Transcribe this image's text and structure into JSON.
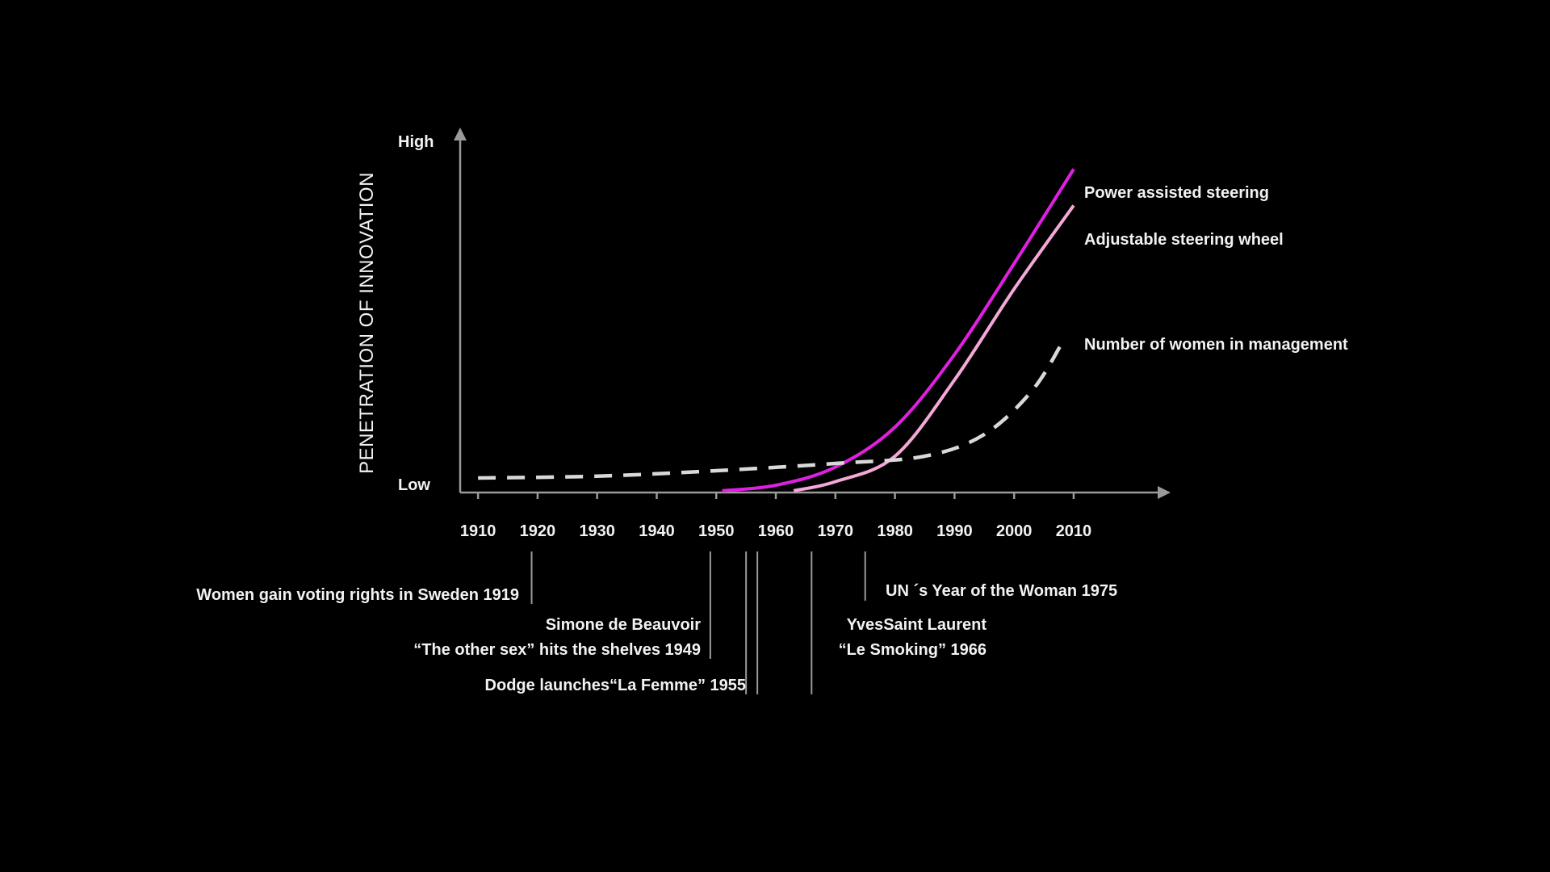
{
  "chart_data": {
    "type": "line",
    "title": "",
    "xlabel": "",
    "ylabel": "PENETRATION OF INNOVATION",
    "y_level_labels": {
      "high": "High",
      "low": "Low"
    },
    "x_ticks": [
      1910,
      1920,
      1930,
      1940,
      1950,
      1960,
      1970,
      1980,
      1990,
      2000,
      2010
    ],
    "xlim": [
      1907,
      2026
    ],
    "ylim": [
      0,
      100
    ],
    "grid": false,
    "legend": "labels at line ends (right)",
    "series": [
      {
        "name": "Power assisted steering",
        "color": "#e020e0",
        "dash": "solid",
        "points": [
          [
            1951,
            0.5
          ],
          [
            1960,
            2
          ],
          [
            1970,
            7
          ],
          [
            1980,
            18
          ],
          [
            1990,
            38
          ],
          [
            2000,
            63
          ],
          [
            2010,
            89
          ]
        ]
      },
      {
        "name": "Adjustable steering wheel",
        "color": "#f4a8d8",
        "dash": "solid",
        "points": [
          [
            1963,
            0.5
          ],
          [
            1970,
            3
          ],
          [
            1980,
            10
          ],
          [
            1990,
            31
          ],
          [
            2000,
            56
          ],
          [
            2010,
            79
          ]
        ]
      },
      {
        "name": "Number of women in management",
        "color": "#d9d9d9",
        "dash": "dashed",
        "points": [
          [
            1910,
            4
          ],
          [
            1930,
            4.5
          ],
          [
            1950,
            6
          ],
          [
            1970,
            8
          ],
          [
            1985,
            10
          ],
          [
            1995,
            16
          ],
          [
            2003,
            28
          ],
          [
            2008,
            41
          ]
        ]
      }
    ],
    "annotations": [
      {
        "year": 1919,
        "text_lines": [
          "Women gain voting rights in Sweden 1919"
        ],
        "align": "right"
      },
      {
        "year": 1949,
        "text_lines": [
          "Simone de Beauvoir",
          "“The other sex” hits the shelves 1949"
        ],
        "align": "right"
      },
      {
        "year": 1955,
        "text_lines": [
          "Dodge launches“La Femme” 1955"
        ],
        "align": "right"
      },
      {
        "year": 1966,
        "text_lines": [
          "YvesSaint Laurent",
          "“Le Smoking” 1966"
        ],
        "align": "right"
      },
      {
        "year": 1975,
        "text_lines": [
          "UN ´s Year of the Woman 1975"
        ],
        "align": "left"
      }
    ]
  }
}
